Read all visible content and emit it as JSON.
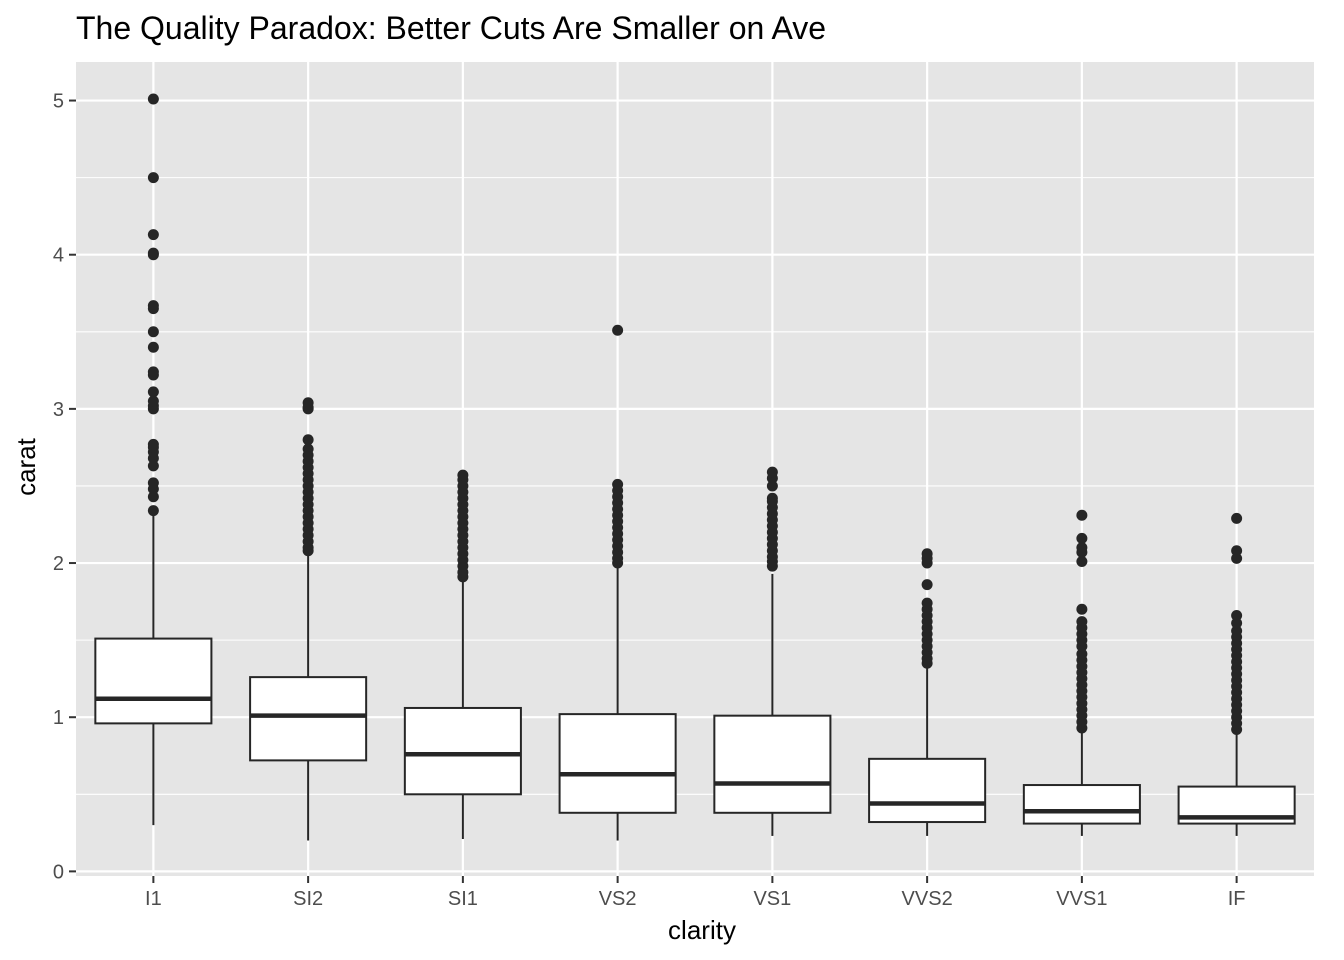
{
  "chart_data": {
    "type": "boxplot",
    "title": "The Quality Paradox: Better Cuts Are Smaller on Ave",
    "xlabel": "clarity",
    "ylabel": "carat",
    "ylim": [
      -0.03,
      5.25
    ],
    "yticks": [
      0,
      1,
      2,
      3,
      4,
      5
    ],
    "yticklabels": [
      "0",
      "1",
      "2",
      "3",
      "4",
      "5"
    ],
    "grid": true,
    "colors": {
      "panel": "#e5e5e5",
      "grid": "#ffffff",
      "box_fill": "#ffffff",
      "box_line": "#262626",
      "outlier": "#262626"
    },
    "categories": [
      "I1",
      "SI2",
      "SI1",
      "VS2",
      "VS1",
      "VVS2",
      "VVS1",
      "IF"
    ],
    "boxes": [
      {
        "category": "I1",
        "whisker_low": 0.3,
        "q1": 0.96,
        "median": 1.12,
        "q3": 1.51,
        "whisker_high": 2.33,
        "outliers": [
          2.34,
          2.43,
          2.48,
          2.52,
          2.63,
          2.68,
          2.72,
          2.75,
          2.77,
          3.0,
          3.02,
          3.05,
          3.11,
          3.22,
          3.24,
          3.4,
          3.5,
          3.65,
          3.67,
          4.0,
          4.01,
          4.13,
          4.5,
          5.01
        ]
      },
      {
        "category": "SI2",
        "whisker_low": 0.2,
        "q1": 0.72,
        "median": 1.01,
        "q3": 1.26,
        "whisker_high": 2.06,
        "outliers": [
          2.08,
          2.1,
          2.14,
          2.18,
          2.22,
          2.26,
          2.3,
          2.34,
          2.38,
          2.42,
          2.46,
          2.5,
          2.54,
          2.58,
          2.62,
          2.66,
          2.7,
          2.74,
          2.8,
          3.0,
          3.01,
          3.04
        ]
      },
      {
        "category": "SI1",
        "whisker_low": 0.21,
        "q1": 0.5,
        "median": 0.76,
        "q3": 1.06,
        "whisker_high": 1.89,
        "outliers": [
          1.91,
          1.94,
          1.98,
          2.02,
          2.06,
          2.1,
          2.14,
          2.18,
          2.22,
          2.26,
          2.3,
          2.34,
          2.38,
          2.42,
          2.46,
          2.5,
          2.54,
          2.57
        ]
      },
      {
        "category": "VS2",
        "whisker_low": 0.2,
        "q1": 0.38,
        "median": 0.63,
        "q3": 1.02,
        "whisker_high": 1.99,
        "outliers": [
          2.0,
          2.03,
          2.07,
          2.11,
          2.15,
          2.19,
          2.23,
          2.27,
          2.31,
          2.35,
          2.39,
          2.43,
          2.47,
          2.51,
          3.51
        ]
      },
      {
        "category": "VS1",
        "whisker_low": 0.23,
        "q1": 0.38,
        "median": 0.57,
        "q3": 1.01,
        "whisker_high": 1.93,
        "outliers": [
          1.98,
          2.01,
          2.04,
          2.08,
          2.12,
          2.16,
          2.2,
          2.24,
          2.28,
          2.32,
          2.36,
          2.4,
          2.42,
          2.5,
          2.55,
          2.59
        ]
      },
      {
        "category": "VVS2",
        "whisker_low": 0.23,
        "q1": 0.32,
        "median": 0.44,
        "q3": 0.73,
        "whisker_high": 1.33,
        "outliers": [
          1.35,
          1.38,
          1.42,
          1.46,
          1.5,
          1.54,
          1.58,
          1.62,
          1.66,
          1.7,
          1.74,
          1.86,
          2.0,
          2.03,
          2.06
        ]
      },
      {
        "category": "VVS1",
        "whisker_low": 0.23,
        "q1": 0.31,
        "median": 0.39,
        "q3": 0.56,
        "whisker_high": 0.92,
        "outliers": [
          0.93,
          0.97,
          1.01,
          1.05,
          1.09,
          1.13,
          1.17,
          1.21,
          1.25,
          1.29,
          1.33,
          1.37,
          1.41,
          1.46,
          1.5,
          1.54,
          1.58,
          1.62,
          1.7,
          2.01,
          2.07,
          2.1,
          2.16,
          2.31
        ]
      },
      {
        "category": "IF",
        "whisker_low": 0.23,
        "q1": 0.31,
        "median": 0.35,
        "q3": 0.55,
        "whisker_high": 0.9,
        "outliers": [
          0.92,
          0.96,
          1.0,
          1.04,
          1.08,
          1.12,
          1.16,
          1.2,
          1.24,
          1.28,
          1.32,
          1.36,
          1.4,
          1.44,
          1.48,
          1.52,
          1.56,
          1.61,
          1.66,
          2.03,
          2.08,
          2.29
        ]
      }
    ]
  }
}
